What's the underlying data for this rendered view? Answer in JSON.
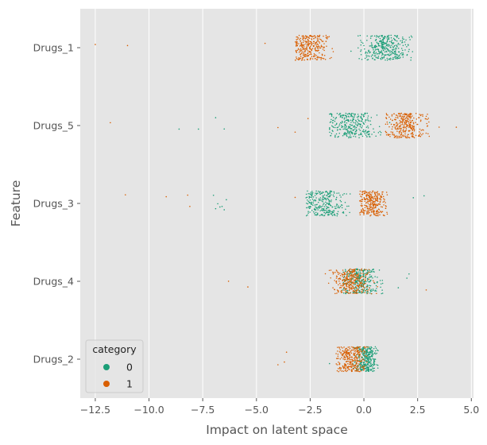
{
  "chart_data": {
    "type": "scatter",
    "style": "strip",
    "xlabel": "Impact on latent space",
    "ylabel": "Feature",
    "xlim": [
      -13.2,
      5.1
    ],
    "x_ticks": [
      -12.5,
      -10.0,
      -7.5,
      -5.0,
      -2.5,
      0.0,
      2.5,
      5.0
    ],
    "x_tick_labels": [
      "−12.5",
      "−10.0",
      "−7.5",
      "−5.0",
      "−2.5",
      "0.0",
      "2.5",
      "5.0"
    ],
    "categories": [
      "Drugs_1",
      "Drugs_5",
      "Drugs_3",
      "Drugs_4",
      "Drugs_2"
    ],
    "grid": true,
    "legend": {
      "title": "category",
      "placement": "lower-left",
      "entries": [
        {
          "label": "0",
          "color": "#1b9e77"
        },
        {
          "label": "1",
          "color": "#d95f02"
        }
      ]
    },
    "series": [
      {
        "name": "0",
        "color": "#1b9e77",
        "clusters": [
          {
            "category": "Drugs_1",
            "center": 1.0,
            "spread": 0.55,
            "min": -0.4,
            "max": 2.3,
            "count": 340
          },
          {
            "category": "Drugs_5",
            "center": -0.6,
            "spread": 0.55,
            "min": -1.6,
            "max": 0.9,
            "count": 300
          },
          {
            "category": "Drugs_3",
            "center": -1.9,
            "spread": 0.55,
            "min": -2.7,
            "max": -0.6,
            "count": 280
          },
          {
            "category": "Drugs_4",
            "center": -0.2,
            "spread": 0.45,
            "min": -1.0,
            "max": 1.3,
            "count": 300
          },
          {
            "category": "Drugs_2",
            "center": 0.1,
            "spread": 0.25,
            "min": -0.5,
            "max": 0.7,
            "count": 300
          }
        ],
        "outliers": [
          {
            "category": "Drugs_1",
            "x": [
              -0.6,
              1.5
            ]
          },
          {
            "category": "Drugs_5",
            "x": [
              -6.9,
              -7.7,
              -8.6,
              -6.5,
              1.2
            ]
          },
          {
            "category": "Drugs_3",
            "x": [
              -6.9,
              -6.6,
              -6.5,
              -6.8,
              -7.0,
              -6.4,
              -6.7,
              2.3,
              2.8
            ]
          },
          {
            "category": "Drugs_4",
            "x": [
              1.6,
              2.0,
              2.1
            ]
          },
          {
            "category": "Drugs_2",
            "x": [
              -1.6
            ]
          }
        ]
      },
      {
        "name": "1",
        "color": "#d95f02",
        "clusters": [
          {
            "category": "Drugs_1",
            "center": -2.6,
            "spread": 0.45,
            "min": -3.2,
            "max": -1.4,
            "count": 300
          },
          {
            "category": "Drugs_5",
            "center": 1.9,
            "spread": 0.5,
            "min": 1.0,
            "max": 3.1,
            "count": 300
          },
          {
            "category": "Drugs_3",
            "center": 0.4,
            "spread": 0.35,
            "min": -0.2,
            "max": 1.1,
            "count": 280
          },
          {
            "category": "Drugs_4",
            "center": -0.6,
            "spread": 0.45,
            "min": -1.8,
            "max": 0.7,
            "count": 300
          },
          {
            "category": "Drugs_2",
            "center": -0.6,
            "spread": 0.35,
            "min": -1.3,
            "max": 0.2,
            "count": 300
          }
        ],
        "outliers": [
          {
            "category": "Drugs_1",
            "x": [
              -12.5,
              -11.0,
              -4.6
            ]
          },
          {
            "category": "Drugs_5",
            "x": [
              -11.8,
              -4.0,
              -3.2,
              -2.6,
              3.5,
              4.3
            ]
          },
          {
            "category": "Drugs_3",
            "x": [
              -11.1,
              -9.2,
              -8.1,
              -8.2,
              -3.2
            ]
          },
          {
            "category": "Drugs_4",
            "x": [
              -6.3,
              -5.4,
              2.9
            ]
          },
          {
            "category": "Drugs_2",
            "x": [
              -4.0,
              -3.7,
              -3.6
            ]
          }
        ]
      }
    ]
  }
}
